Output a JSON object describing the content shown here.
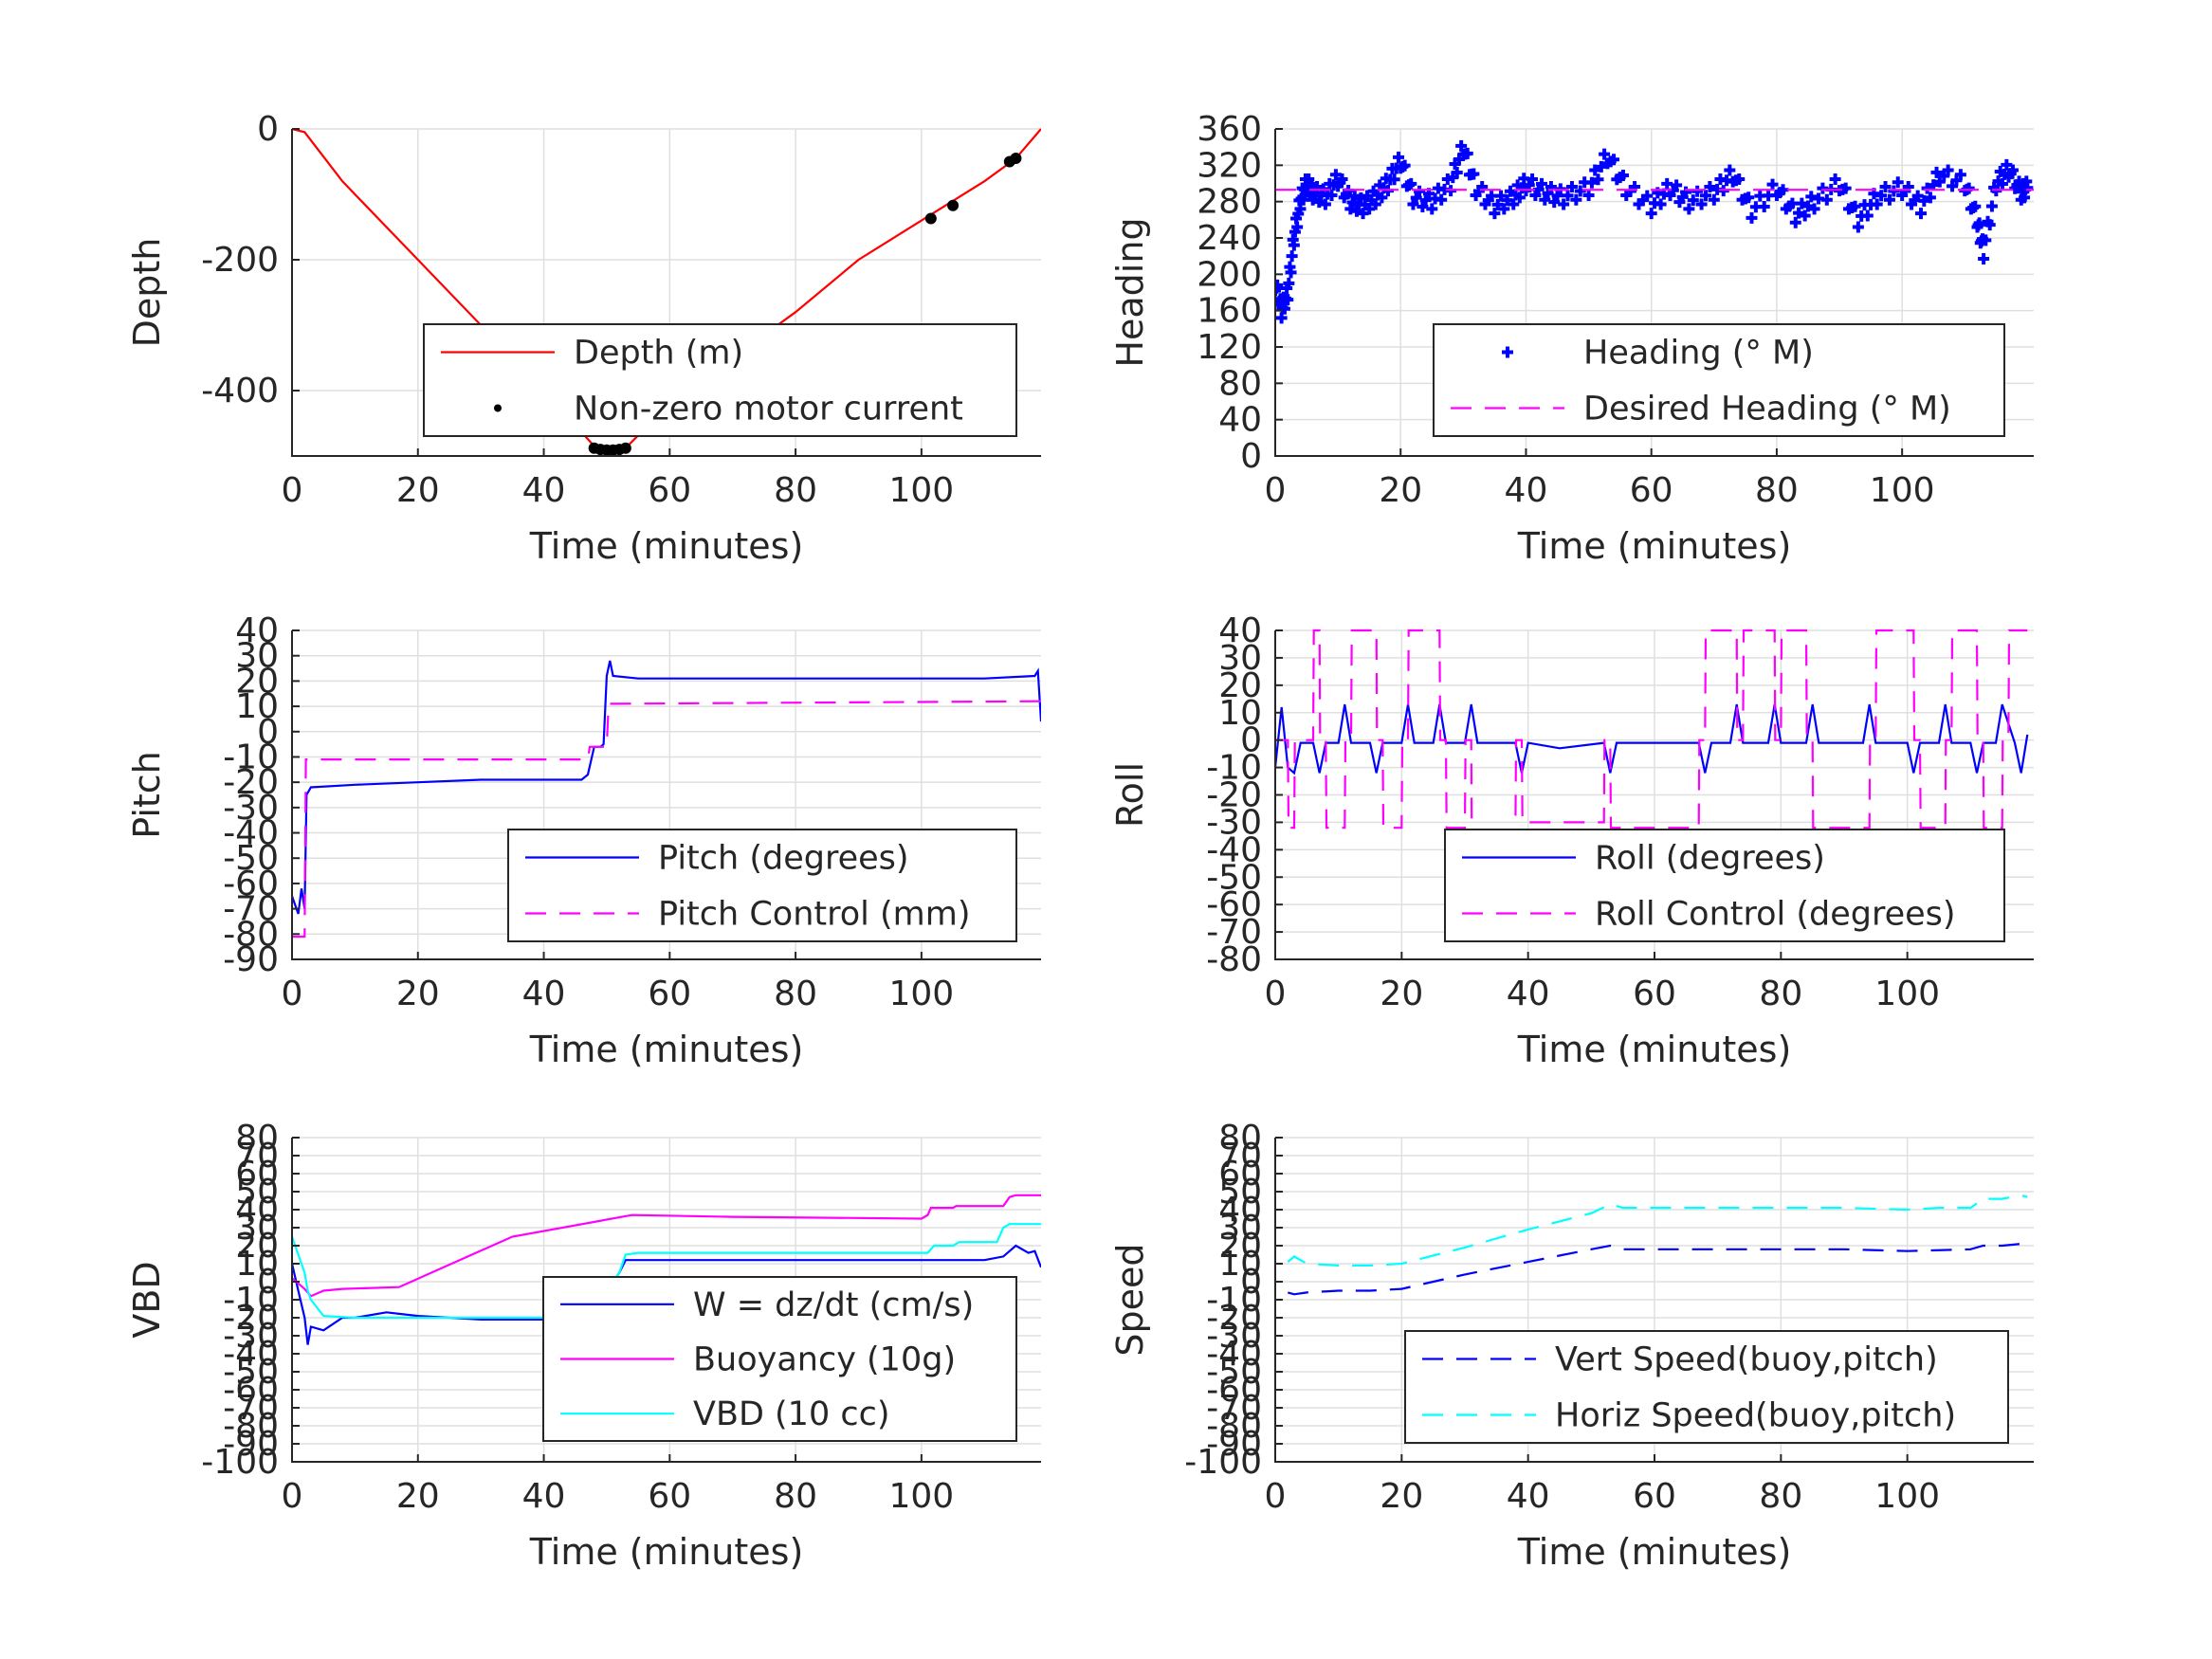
{
  "chart_data": [
    {
      "type": "line",
      "xlabel": "Time (minutes)",
      "ylabel": "Depth",
      "xlim": [
        0,
        119
      ],
      "ylim": [
        -500,
        0
      ],
      "xticks": [
        0,
        20,
        40,
        60,
        80,
        100
      ],
      "yticks": [
        -400,
        -200,
        0
      ],
      "grid": true,
      "legend": "bottom-right",
      "series": [
        {
          "name": "Depth (m)",
          "style": "solid",
          "color": "#ff0000",
          "marker": "none",
          "x": [
            0,
            2,
            8,
            20,
            30,
            40,
            48,
            50,
            53,
            60,
            70,
            80,
            90,
            100,
            110,
            115,
            119
          ],
          "y": [
            0,
            -5,
            -80,
            -200,
            -300,
            -400,
            -485,
            -490,
            -488,
            -420,
            -350,
            -280,
            -200,
            -140,
            -80,
            -45,
            0
          ]
        },
        {
          "name": "Non-zero motor current",
          "style": "none",
          "color": "#000000",
          "marker": "dot",
          "x": [
            48,
            49,
            50,
            51,
            52,
            53,
            101.5,
            105,
            114,
            115
          ],
          "y": [
            -488,
            -490,
            -491,
            -491,
            -490,
            -488,
            -137,
            -117,
            -50,
            -45
          ]
        }
      ]
    },
    {
      "type": "line",
      "xlabel": "Time (minutes)",
      "ylabel": "Heading",
      "xlim": [
        0,
        121
      ],
      "ylim": [
        0,
        360
      ],
      "xticks": [
        0,
        20,
        40,
        60,
        80,
        100
      ],
      "yticks": [
        0,
        40,
        80,
        120,
        160,
        200,
        240,
        280,
        320,
        360
      ],
      "grid": true,
      "legend": "bottom-right",
      "series": [
        {
          "name": "Heading (° M)",
          "style": "none",
          "color": "#0000ff",
          "marker": "plus",
          "x": [
            0,
            1,
            2,
            3,
            4,
            5,
            6,
            8,
            10,
            12,
            14,
            16,
            18,
            20,
            22,
            25,
            28,
            30,
            32,
            35,
            38,
            40,
            43,
            46,
            50,
            53,
            56,
            60,
            63,
            66,
            70,
            73,
            76,
            80,
            83,
            86,
            90,
            93,
            96,
            100,
            103,
            106,
            110,
            112,
            113,
            115,
            117,
            119,
            120
          ],
          "y": [
            190,
            160,
            180,
            240,
            280,
            300,
            290,
            285,
            305,
            280,
            275,
            285,
            300,
            325,
            285,
            280,
            300,
            340,
            295,
            275,
            285,
            300,
            290,
            285,
            295,
            330,
            295,
            275,
            295,
            280,
            290,
            310,
            270,
            295,
            265,
            280,
            300,
            260,
            285,
            295,
            275,
            310,
            300,
            260,
            225,
            300,
            315,
            290,
            295
          ]
        },
        {
          "name": "Desired Heading (° M)",
          "style": "dashed",
          "color": "#ff00ff",
          "marker": "none",
          "x": [
            0,
            121
          ],
          "y": [
            293,
            293
          ]
        }
      ]
    },
    {
      "type": "line",
      "xlabel": "Time (minutes)",
      "ylabel": "Pitch",
      "xlim": [
        0,
        119
      ],
      "ylim": [
        -90,
        40
      ],
      "xticks": [
        0,
        20,
        40,
        60,
        80,
        100
      ],
      "yticks": [
        -90,
        -80,
        -70,
        -60,
        -50,
        -40,
        -30,
        -20,
        -10,
        0,
        10,
        20,
        30,
        40
      ],
      "grid": true,
      "legend": "bottom-right",
      "series": [
        {
          "name": "Pitch (degrees)",
          "style": "solid",
          "color": "#0000ff",
          "marker": "none",
          "x": [
            0,
            1,
            1.5,
            2,
            2.3,
            3,
            10,
            20,
            30,
            40,
            46,
            47,
            48,
            49,
            49.5,
            50,
            50.5,
            51,
            55,
            60,
            80,
            100,
            110,
            118,
            118.5,
            119
          ],
          "y": [
            -65,
            -72,
            -62,
            -70,
            -25,
            -22,
            -21,
            -20,
            -19,
            -19,
            -19,
            -17,
            -6,
            -6,
            -5,
            22,
            28,
            22,
            21,
            21,
            21,
            21,
            21,
            22,
            24,
            4
          ]
        },
        {
          "name": "Pitch Control (mm)",
          "style": "dashed",
          "color": "#ff00ff",
          "marker": "none",
          "x": [
            0,
            2,
            2.2,
            47,
            47.3,
            50,
            50.3,
            119
          ],
          "y": [
            -81,
            -81,
            -11,
            -11,
            -6,
            -6,
            11,
            12
          ]
        }
      ]
    },
    {
      "type": "line",
      "xlabel": "Time (minutes)",
      "ylabel": "Roll",
      "xlim": [
        0,
        120
      ],
      "ylim": [
        -80,
        40
      ],
      "xticks": [
        0,
        20,
        40,
        60,
        80,
        100
      ],
      "yticks": [
        -80,
        -70,
        -60,
        -50,
        -40,
        -30,
        -20,
        -10,
        0,
        10,
        20,
        30,
        40
      ],
      "grid": true,
      "legend": "bottom-right",
      "series": [
        {
          "name": "Roll (degrees)",
          "style": "solid",
          "color": "#0000ff",
          "marker": "none",
          "x": [
            0,
            1,
            2,
            3,
            4,
            6,
            7,
            8,
            10,
            11,
            12,
            15,
            16,
            17,
            20,
            21,
            22,
            25,
            26,
            27,
            30,
            31,
            32,
            38,
            39,
            40,
            45,
            52,
            53,
            54,
            60,
            67,
            68,
            69,
            72,
            73,
            74,
            78,
            79,
            80,
            84,
            85,
            86,
            93,
            94,
            95,
            100,
            101,
            102,
            105,
            106,
            107,
            110,
            111,
            112,
            114,
            115,
            117,
            118,
            119
          ],
          "y": [
            -10,
            12,
            -10,
            -12,
            -1,
            -1,
            -12,
            -1,
            -1,
            13,
            -1,
            -1,
            -12,
            -1,
            -1,
            13,
            -1,
            -1,
            13,
            -1,
            -1,
            13,
            -1,
            -1,
            -12,
            -1,
            -3,
            -1,
            -12,
            -1,
            -1,
            -1,
            -12,
            -1,
            -1,
            13,
            -1,
            -1,
            13,
            -1,
            -1,
            13,
            -1,
            -1,
            13,
            -1,
            -1,
            -12,
            -1,
            -1,
            13,
            -1,
            -1,
            -12,
            -1,
            -1,
            13,
            -1,
            -12,
            2
          ]
        },
        {
          "name": "Roll Control (degrees)",
          "style": "dashed",
          "color": "#ff00ff",
          "marker": "none",
          "x": [
            0,
            2,
            2.1,
            3,
            3.1,
            6,
            6.1,
            7,
            7.1,
            8,
            8.1,
            11,
            11.1,
            12,
            12.1,
            16,
            16.1,
            17,
            17.1,
            20,
            20.1,
            21,
            21.1,
            26,
            26.1,
            27,
            27.1,
            30,
            30.1,
            31,
            31.1,
            38,
            38.1,
            39,
            39.1,
            52,
            52.1,
            53,
            53.1,
            67,
            67.1,
            68,
            68.1,
            73,
            73.1,
            74,
            74.1,
            79,
            79.1,
            80,
            80.1,
            84,
            84.1,
            85,
            85.1,
            94,
            94.1,
            95,
            95.1,
            101,
            101.1,
            102,
            102.1,
            106,
            106.1,
            107,
            107.1,
            111,
            111.1,
            112,
            112.1,
            115,
            115.1,
            116,
            116.1,
            119
          ],
          "y": [
            0,
            0,
            -32,
            -32,
            0,
            0,
            40,
            40,
            0,
            0,
            -32,
            -32,
            0,
            0,
            40,
            40,
            0,
            0,
            -32,
            -32,
            0,
            0,
            40,
            40,
            0,
            0,
            -32,
            -32,
            0,
            0,
            -35,
            -35,
            0,
            0,
            -30,
            -30,
            0,
            0,
            -32,
            -32,
            0,
            0,
            40,
            40,
            0,
            0,
            40,
            40,
            0,
            0,
            40,
            40,
            0,
            0,
            -32,
            -32,
            0,
            0,
            40,
            40,
            0,
            0,
            -32,
            -32,
            0,
            0,
            40,
            40,
            0,
            0,
            -32,
            -32,
            0,
            0,
            40,
            40
          ]
        }
      ]
    },
    {
      "type": "line",
      "xlabel": "Time (minutes)",
      "ylabel": "VBD",
      "xlim": [
        0,
        119
      ],
      "ylim": [
        -100,
        80
      ],
      "xticks": [
        0,
        20,
        40,
        60,
        80,
        100
      ],
      "yticks": [
        -100,
        -90,
        -80,
        -70,
        -60,
        -50,
        -40,
        -30,
        -20,
        -10,
        0,
        10,
        20,
        30,
        40,
        50,
        60,
        70,
        80
      ],
      "grid": true,
      "legend": "bottom-right",
      "series": [
        {
          "name": "W = dz/dt (cm/s)",
          "style": "solid",
          "color": "#0000ff",
          "marker": "none",
          "x": [
            0,
            1,
            2,
            2.5,
            3,
            5,
            8,
            10,
            15,
            20,
            30,
            40,
            46,
            47,
            48,
            50,
            52,
            53,
            55,
            60,
            80,
            100,
            110,
            113,
            115,
            117,
            118,
            119
          ],
          "y": [
            10,
            -5,
            -20,
            -35,
            -25,
            -27,
            -20,
            -20,
            -17,
            -19,
            -21,
            -21,
            -20,
            -10,
            -8,
            -5,
            5,
            12,
            12,
            12,
            12,
            12,
            12,
            14,
            20,
            16,
            17,
            8
          ]
        },
        {
          "name": "Buoyancy (10g)",
          "style": "solid",
          "color": "#ff00ff",
          "marker": "none",
          "x": [
            0,
            2,
            3,
            5,
            8,
            17,
            35,
            54,
            70,
            100,
            101,
            101.5,
            105,
            105.5,
            113,
            114,
            115,
            119
          ],
          "y": [
            2,
            -4,
            -8,
            -5,
            -4,
            -3,
            25,
            37,
            36,
            35,
            37,
            41,
            41,
            42,
            42,
            47,
            48,
            48
          ]
        },
        {
          "name": "VBD (10 cc)",
          "style": "solid",
          "color": "#00ffff",
          "marker": "none",
          "x": [
            0,
            1,
            2,
            2.5,
            3,
            5,
            10,
            20,
            40,
            47,
            48,
            50,
            52,
            53,
            55,
            60,
            80,
            100,
            101,
            102,
            105,
            106,
            112,
            113,
            114,
            119
          ],
          "y": [
            25,
            15,
            5,
            -5,
            -10,
            -19,
            -20,
            -20,
            -20,
            -20,
            -10,
            -5,
            5,
            15,
            16,
            16,
            16,
            16,
            16,
            20,
            20,
            22,
            22,
            30,
            32,
            32
          ]
        }
      ]
    },
    {
      "type": "line",
      "xlabel": "Time (minutes)",
      "ylabel": "Speed",
      "xlim": [
        0,
        120
      ],
      "ylim": [
        -100,
        80
      ],
      "xticks": [
        0,
        20,
        40,
        60,
        80,
        100
      ],
      "yticks": [
        -100,
        -90,
        -80,
        -70,
        -60,
        -50,
        -40,
        -30,
        -20,
        -10,
        0,
        10,
        20,
        30,
        40,
        50,
        60,
        70,
        80
      ],
      "grid": true,
      "legend": "bottom-right",
      "series": [
        {
          "name": "Vert Speed(buoy,pitch)",
          "style": "dashed",
          "color": "#0000ff",
          "marker": "none",
          "x": [
            2,
            3,
            5,
            10,
            15,
            20,
            30,
            40,
            50,
            53,
            55,
            60,
            70,
            80,
            90,
            100,
            110,
            112,
            115,
            118,
            119
          ],
          "y": [
            -6,
            -7,
            -6,
            -5,
            -5,
            -4,
            4,
            11,
            18,
            20,
            18,
            18,
            18,
            18,
            18,
            17,
            18,
            20,
            20,
            21,
            24
          ]
        },
        {
          "name": "Horiz Speed(buoy,pitch)",
          "style": "dashed",
          "color": "#00ffff",
          "marker": "none",
          "x": [
            2,
            3,
            5,
            10,
            15,
            20,
            30,
            40,
            50,
            53,
            55,
            60,
            70,
            80,
            90,
            100,
            105,
            110,
            112,
            115,
            118,
            119
          ],
          "y": [
            11,
            14,
            10,
            9,
            9,
            10,
            19,
            29,
            38,
            43,
            41,
            41,
            41,
            41,
            41,
            40,
            41,
            41,
            46,
            46,
            48,
            47
          ]
        }
      ]
    }
  ]
}
